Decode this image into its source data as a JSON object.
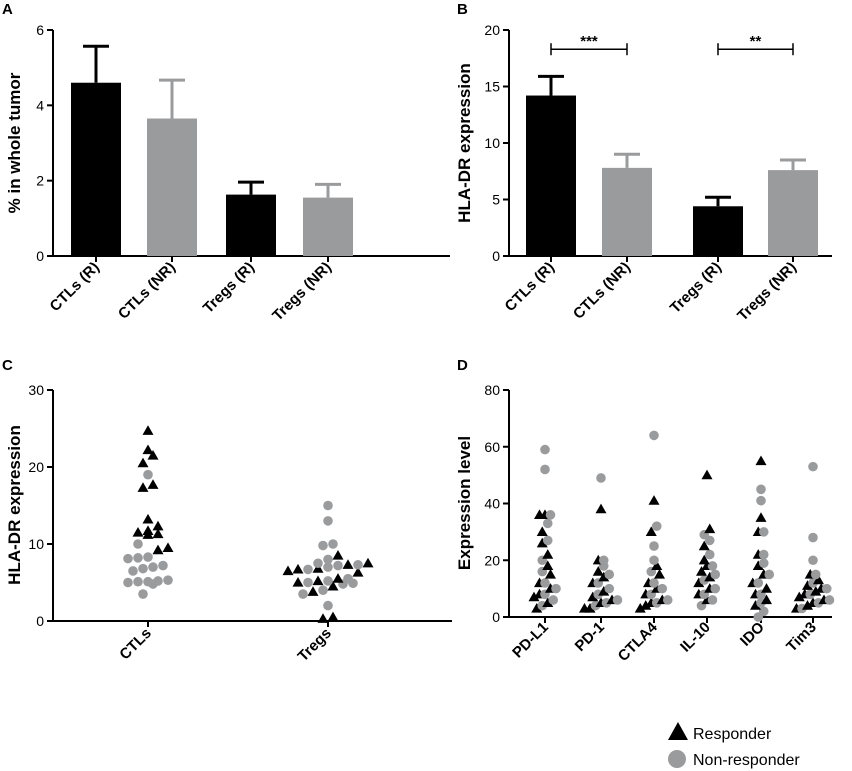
{
  "colors": {
    "black": "#000000",
    "grey": "#9a9b9d",
    "responder_marker": "#000000",
    "nonresponder_marker": "#9a9b9d"
  },
  "legend": {
    "responder": "Responder",
    "non_responder": "Non-responder"
  },
  "chart_data": [
    {
      "panel": "A",
      "type": "bar",
      "title": "",
      "xlabel": "",
      "ylabel": "% in whole tumor",
      "ylim": [
        0,
        6
      ],
      "yticks": [
        "0",
        "2",
        "4",
        "6"
      ],
      "categories": [
        "CTLs (R)",
        "CTLs (NR)",
        "Tregs (R)",
        "Tregs (NR)"
      ],
      "values": [
        4.6,
        3.65,
        1.63,
        1.55
      ],
      "errors": [
        0.97,
        1.02,
        0.33,
        0.35
      ],
      "bar_colors": [
        "black",
        "grey",
        "black",
        "grey"
      ],
      "annotations": []
    },
    {
      "panel": "B",
      "type": "bar",
      "title": "",
      "xlabel": "",
      "ylabel": "HLA-DR expression",
      "ylim": [
        0,
        20
      ],
      "yticks": [
        "0",
        "5",
        "10",
        "15",
        "20"
      ],
      "categories": [
        "CTLs (R)",
        "CTLs (NR)",
        "Tregs (R)",
        "Tregs (NR)"
      ],
      "values": [
        14.2,
        7.8,
        4.4,
        7.6
      ],
      "errors": [
        1.7,
        1.2,
        0.8,
        0.9
      ],
      "bar_colors": [
        "black",
        "grey",
        "black",
        "grey"
      ],
      "annotations": [
        {
          "from": 0,
          "to": 1,
          "y": 18.3,
          "text": "***"
        },
        {
          "from": 2,
          "to": 3,
          "y": 18.3,
          "text": "**"
        }
      ]
    },
    {
      "panel": "C",
      "type": "scatter",
      "title": "",
      "xlabel": "",
      "ylabel": "HLA-DR expression",
      "ylim": [
        0,
        30
      ],
      "yticks": [
        "0",
        "10",
        "20",
        "30"
      ],
      "categories": [
        "CTLs",
        "Tregs"
      ],
      "series": [
        {
          "name": "Responder",
          "marker": "triangle",
          "points": [
            [
              0,
              24.7
            ],
            [
              0,
              22.2
            ],
            [
              0,
              21.5
            ],
            [
              0,
              20.5
            ],
            [
              0,
              17.7
            ],
            [
              0,
              17.3
            ],
            [
              0,
              13.2
            ],
            [
              0,
              12.3
            ],
            [
              0,
              11.7
            ],
            [
              0,
              11.5
            ],
            [
              0,
              11.3
            ],
            [
              0,
              11.2
            ],
            [
              0,
              9.5
            ],
            [
              0,
              9.2
            ],
            [
              1,
              8.5
            ],
            [
              1,
              7.5
            ],
            [
              1,
              7.3
            ],
            [
              1,
              6.8
            ],
            [
              1,
              6.7
            ],
            [
              1,
              6.5
            ],
            [
              1,
              6.3
            ],
            [
              1,
              5.5
            ],
            [
              1,
              5.2
            ],
            [
              1,
              5.0
            ],
            [
              1,
              4.5
            ],
            [
              1,
              3.8
            ],
            [
              1,
              0.5
            ],
            [
              1,
              0.3
            ]
          ]
        },
        {
          "name": "Non-responder",
          "marker": "circle",
          "points": [
            [
              0,
              19.0
            ],
            [
              0,
              10.0
            ],
            [
              0,
              8.3
            ],
            [
              0,
              8.2
            ],
            [
              0,
              8.1
            ],
            [
              0,
              7.2
            ],
            [
              0,
              7.0
            ],
            [
              0,
              6.8
            ],
            [
              0,
              6.5
            ],
            [
              0,
              5.3
            ],
            [
              0,
              5.2
            ],
            [
              0,
              5.1
            ],
            [
              0,
              5.1
            ],
            [
              0,
              5.0
            ],
            [
              0,
              4.8
            ],
            [
              0,
              3.5
            ],
            [
              1,
              15.0
            ],
            [
              1,
              13.0
            ],
            [
              1,
              10.0
            ],
            [
              1,
              9.8
            ],
            [
              1,
              8.0
            ],
            [
              1,
              7.5
            ],
            [
              1,
              7.3
            ],
            [
              1,
              7.2
            ],
            [
              1,
              7.0
            ],
            [
              1,
              6.7
            ],
            [
              1,
              5.5
            ],
            [
              1,
              5.2
            ],
            [
              1,
              5.0
            ],
            [
              1,
              4.9
            ],
            [
              1,
              4.8
            ],
            [
              1,
              4.0
            ],
            [
              1,
              3.5
            ],
            [
              1,
              2.0
            ]
          ]
        }
      ]
    },
    {
      "panel": "D",
      "type": "scatter",
      "title": "",
      "xlabel": "",
      "ylabel": "Expression level",
      "ylim": [
        0,
        80
      ],
      "yticks": [
        "0",
        "20",
        "40",
        "60",
        "80"
      ],
      "categories": [
        "PD-L1",
        "PD-1",
        "CTLA4",
        "IL-10",
        "IDO",
        "Tim3"
      ],
      "series": [
        {
          "name": "Responder",
          "marker": "triangle",
          "points": [
            [
              0,
              36
            ],
            [
              0,
              36
            ],
            [
              0,
              30
            ],
            [
              0,
              26
            ],
            [
              0,
              22
            ],
            [
              0,
              18
            ],
            [
              0,
              15
            ],
            [
              0,
              12
            ],
            [
              0,
              10
            ],
            [
              0,
              8
            ],
            [
              0,
              7
            ],
            [
              0,
              5
            ],
            [
              0,
              3
            ],
            [
              1,
              38
            ],
            [
              1,
              20
            ],
            [
              1,
              16
            ],
            [
              1,
              14
            ],
            [
              1,
              12
            ],
            [
              1,
              9
            ],
            [
              1,
              7
            ],
            [
              1,
              6
            ],
            [
              1,
              5
            ],
            [
              1,
              3
            ],
            [
              1,
              3
            ],
            [
              2,
              41
            ],
            [
              2,
              30
            ],
            [
              2,
              18
            ],
            [
              2,
              15
            ],
            [
              2,
              12
            ],
            [
              2,
              10
            ],
            [
              2,
              8
            ],
            [
              2,
              6
            ],
            [
              2,
              5
            ],
            [
              2,
              4
            ],
            [
              2,
              3
            ],
            [
              3,
              50
            ],
            [
              3,
              31
            ],
            [
              3,
              25
            ],
            [
              3,
              20
            ],
            [
              3,
              18
            ],
            [
              3,
              16
            ],
            [
              3,
              14
            ],
            [
              3,
              12
            ],
            [
              3,
              10
            ],
            [
              3,
              8
            ],
            [
              3,
              6
            ],
            [
              4,
              55
            ],
            [
              4,
              35
            ],
            [
              4,
              30
            ],
            [
              4,
              22
            ],
            [
              4,
              18
            ],
            [
              4,
              15
            ],
            [
              4,
              12
            ],
            [
              4,
              10
            ],
            [
              4,
              8
            ],
            [
              4,
              6
            ],
            [
              4,
              4
            ],
            [
              5,
              15
            ],
            [
              5,
              13
            ],
            [
              5,
              11
            ],
            [
              5,
              10
            ],
            [
              5,
              9
            ],
            [
              5,
              8
            ],
            [
              5,
              7
            ],
            [
              5,
              6
            ],
            [
              5,
              5
            ],
            [
              5,
              4
            ],
            [
              5,
              3
            ]
          ]
        },
        {
          "name": "Non-responder",
          "marker": "circle",
          "points": [
            [
              0,
              59
            ],
            [
              0,
              52
            ],
            [
              0,
              36
            ],
            [
              0,
              33
            ],
            [
              0,
              27
            ],
            [
              0,
              20
            ],
            [
              0,
              16
            ],
            [
              0,
              12
            ],
            [
              0,
              10
            ],
            [
              0,
              8
            ],
            [
              0,
              6
            ],
            [
              0,
              4
            ],
            [
              1,
              49
            ],
            [
              1,
              20
            ],
            [
              1,
              18
            ],
            [
              1,
              15
            ],
            [
              1,
              12
            ],
            [
              1,
              10
            ],
            [
              1,
              8
            ],
            [
              1,
              6
            ],
            [
              1,
              5
            ],
            [
              1,
              4
            ],
            [
              2,
              64
            ],
            [
              2,
              32
            ],
            [
              2,
              25
            ],
            [
              2,
              20
            ],
            [
              2,
              16
            ],
            [
              2,
              12
            ],
            [
              2,
              10
            ],
            [
              2,
              8
            ],
            [
              2,
              6
            ],
            [
              2,
              5
            ],
            [
              3,
              29
            ],
            [
              3,
              27
            ],
            [
              3,
              22
            ],
            [
              3,
              18
            ],
            [
              3,
              15
            ],
            [
              3,
              13
            ],
            [
              3,
              10
            ],
            [
              3,
              8
            ],
            [
              3,
              6
            ],
            [
              3,
              4
            ],
            [
              4,
              45
            ],
            [
              4,
              41
            ],
            [
              4,
              30
            ],
            [
              4,
              22
            ],
            [
              4,
              19
            ],
            [
              4,
              15
            ],
            [
              4,
              12
            ],
            [
              4,
              8
            ],
            [
              4,
              5
            ],
            [
              4,
              2
            ],
            [
              4,
              0
            ],
            [
              5,
              53
            ],
            [
              5,
              28
            ],
            [
              5,
              20
            ],
            [
              5,
              15
            ],
            [
              5,
              12
            ],
            [
              5,
              10
            ],
            [
              5,
              8
            ],
            [
              5,
              6
            ],
            [
              5,
              5
            ],
            [
              5,
              3
            ]
          ]
        }
      ]
    }
  ]
}
